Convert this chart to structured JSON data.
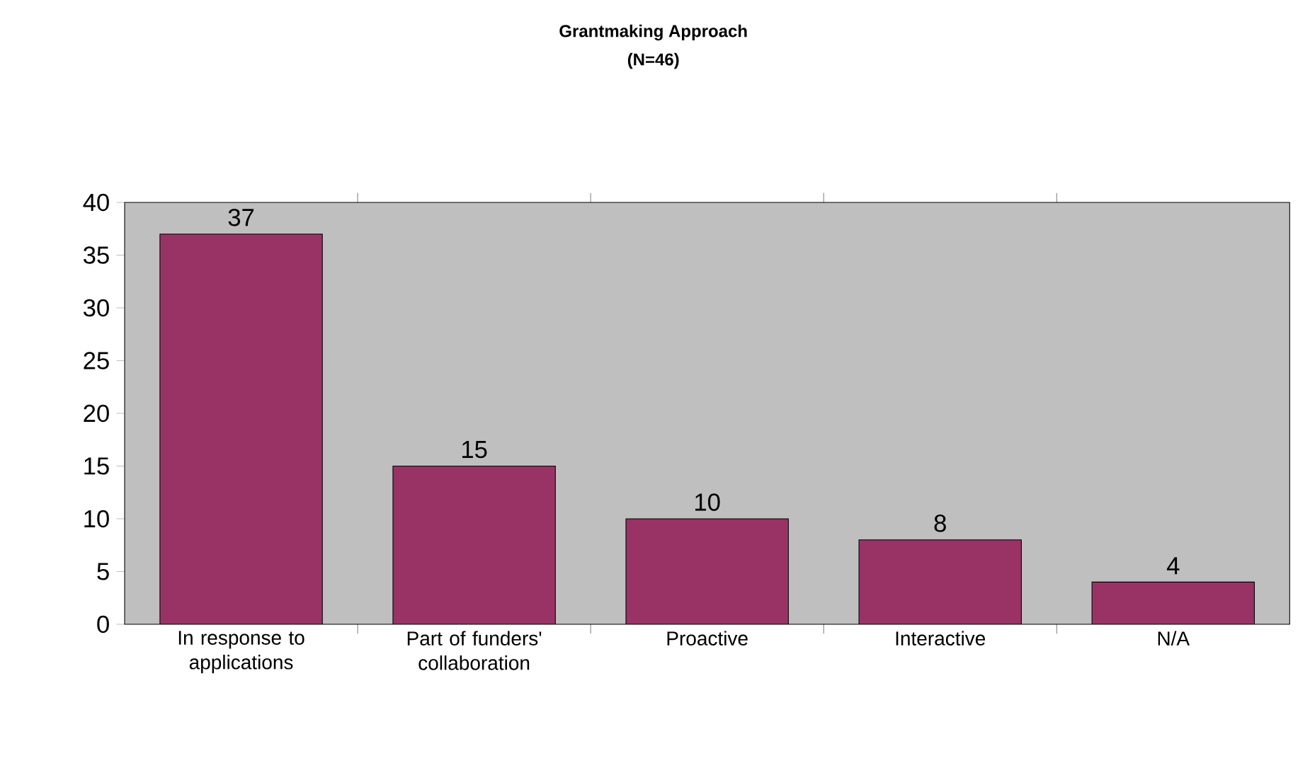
{
  "chart_data": {
    "type": "bar",
    "title": "Grantmaking Approach",
    "subtitle": "(N=46)",
    "categories": [
      "In response to applications",
      "Part of funders' collaboration",
      "Proactive",
      "Interactive",
      "N/A"
    ],
    "values": [
      37,
      15,
      10,
      8,
      4
    ],
    "color": "#993366",
    "ylim": [
      0,
      40
    ],
    "yticks": [
      0,
      5,
      10,
      15,
      20,
      25,
      30,
      35,
      40
    ],
    "data_labels": true
  }
}
